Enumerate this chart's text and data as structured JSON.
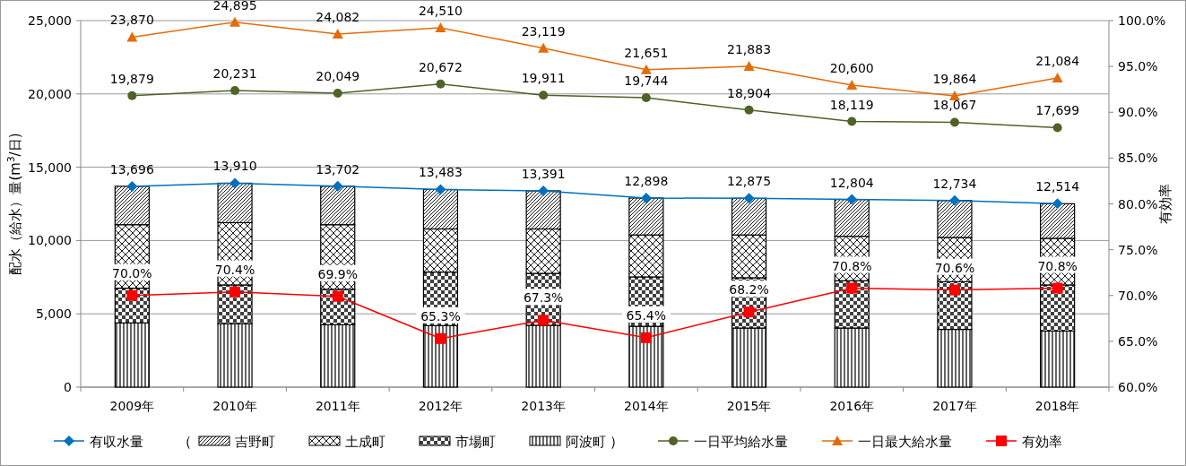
{
  "chart_data": {
    "type": "bar",
    "stacked": true,
    "ylabel": "配水（給水）量(m$^{3}$/日)",
    "y2label": "有効率",
    "categories": [
      "2009年",
      "2010年",
      "2011年",
      "2012年",
      "2013年",
      "2014年",
      "2015年",
      "2016年",
      "2017年",
      "2018年"
    ],
    "ylim": [
      0,
      25000
    ],
    "yticks": [
      {
        "value": 0,
        "label": "0"
      },
      {
        "value": 5000,
        "label": "5,000"
      },
      {
        "value": 10000,
        "label": "10,000"
      },
      {
        "value": 15000,
        "label": "15,000"
      },
      {
        "value": 20000,
        "label": "20,000"
      },
      {
        "value": 25000,
        "label": "25,000"
      }
    ],
    "y2lim": [
      60,
      100
    ],
    "y2ticks": [
      {
        "value": 60,
        "label": "60.0%"
      },
      {
        "value": 65,
        "label": "65.0%"
      },
      {
        "value": 70,
        "label": "70.0%"
      },
      {
        "value": 75,
        "label": "75.0%"
      },
      {
        "value": 80,
        "label": "80.0%"
      },
      {
        "value": 85,
        "label": "85.0%"
      },
      {
        "value": 90,
        "label": "90.0%"
      },
      {
        "value": 95,
        "label": "95.0%"
      },
      {
        "value": 100,
        "label": "100.0%"
      }
    ],
    "grid": "y",
    "legend": "bottom",
    "annotations": [
      "（",
      "）"
    ],
    "series": [
      {
        "name": "有収水量",
        "type": "line",
        "marker": "diamond",
        "color": "#0070c0",
        "values": [
          13696,
          13910,
          13702,
          13483,
          13391,
          12898,
          12875,
          12804,
          12734,
          12514
        ],
        "value_labels": [
          "13,696",
          "13,910",
          "13,702",
          "13,483",
          "13,391",
          "12,898",
          "12,875",
          "12,804",
          "12,734",
          "12,514"
        ]
      },
      {
        "name": "阿波町",
        "color": "#000000",
        "values": [
          4380,
          4330,
          4260,
          4200,
          4220,
          4150,
          4030,
          4030,
          3940,
          3830
        ]
      },
      {
        "name": "市場町",
        "color": "#000000",
        "values": [
          2370,
          2640,
          2420,
          3650,
          3540,
          3370,
          3430,
          3230,
          3250,
          3140
        ]
      },
      {
        "name": "土成町",
        "color": "#000000",
        "values": [
          4330,
          4250,
          4400,
          2940,
          3030,
          2860,
          2920,
          3030,
          3020,
          3180
        ]
      },
      {
        "name": "吉野町",
        "color": "#000000",
        "values": [
          2620,
          2690,
          2620,
          2690,
          2600,
          2520,
          2500,
          2510,
          2520,
          2360
        ]
      },
      {
        "name": "一日平均給水量",
        "type": "line",
        "marker": "circle",
        "color": "#4f6228",
        "values": [
          19879,
          20231,
          20049,
          20672,
          19911,
          19744,
          18904,
          18119,
          18067,
          17699
        ],
        "value_labels": [
          "19,879",
          "20,231",
          "20,049",
          "20,672",
          "19,911",
          "19,744",
          "18,904",
          "18,119",
          "18,067",
          "17,699"
        ]
      },
      {
        "name": "一日最大給水量",
        "type": "line",
        "marker": "triangle",
        "color": "#e36c09",
        "values": [
          23870,
          24895,
          24082,
          24510,
          23119,
          21651,
          21883,
          20600,
          19864,
          21084
        ],
        "value_labels": [
          "23,870",
          "24,895",
          "24,082",
          "24,510",
          "23,119",
          "21,651",
          "21,883",
          "20,600",
          "19,864",
          "21,084"
        ]
      },
      {
        "name": "有効率",
        "type": "line",
        "marker": "square",
        "axis": "y2",
        "color": "#ff0000",
        "values": [
          70.0,
          70.4,
          69.9,
          65.3,
          67.3,
          65.4,
          68.2,
          70.8,
          70.6,
          70.8
        ],
        "value_labels": [
          "70.0%",
          "70.4%",
          "69.9%",
          "65.3%",
          "67.3%",
          "65.4%",
          "68.2%",
          "70.8%",
          "70.6%",
          "70.8%"
        ]
      }
    ]
  }
}
